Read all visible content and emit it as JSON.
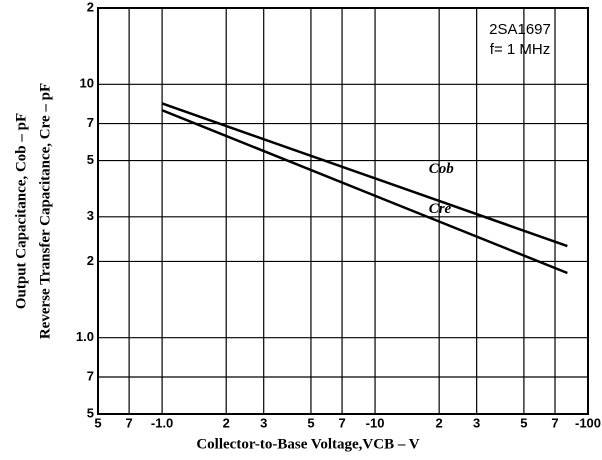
{
  "chart_data": {
    "type": "line",
    "x_label": "Collector-to-Base Voltage,VCB – V",
    "y_label": [
      "Output Capacitance, Cob – pF",
      "Reverse Transfer Capacitance, Cre – pF"
    ],
    "annotations": [
      "2SA1697",
      "f= 1 MHz"
    ],
    "x_log": true,
    "y_log": true,
    "grid": true,
    "xlim": [
      -0.5,
      -100
    ],
    "xticks": [
      {
        "value": -0.5,
        "label": "5"
      },
      {
        "value": -0.7,
        "label": "7"
      },
      {
        "value": -1,
        "label": "-1.0"
      },
      {
        "value": -2,
        "label": "2"
      },
      {
        "value": -3,
        "label": "3"
      },
      {
        "value": -5,
        "label": "5"
      },
      {
        "value": -7,
        "label": "7"
      },
      -10,
      {
        "value": -20,
        "label": "2"
      },
      {
        "value": -30,
        "label": "3"
      },
      {
        "value": -50,
        "label": "5"
      },
      {
        "value": -70,
        "label": "7"
      },
      -100
    ],
    "ylim": [
      0.5,
      20
    ],
    "yticks": [
      {
        "value": 0.5,
        "label": "5"
      },
      {
        "value": 0.7,
        "label": "7"
      },
      {
        "value": 1,
        "label": "1.0"
      },
      2,
      3,
      5,
      7,
      10,
      {
        "value": 20,
        "label": "2"
      }
    ],
    "series": [
      {
        "name": "Cob",
        "color": "#000000",
        "x": [
          -1,
          -80
        ],
        "values": [
          8.4,
          2.3
        ]
      },
      {
        "name": "Cre",
        "color": "#000000",
        "x": [
          -1,
          -80
        ],
        "values": [
          7.9,
          1.8
        ]
      }
    ]
  }
}
